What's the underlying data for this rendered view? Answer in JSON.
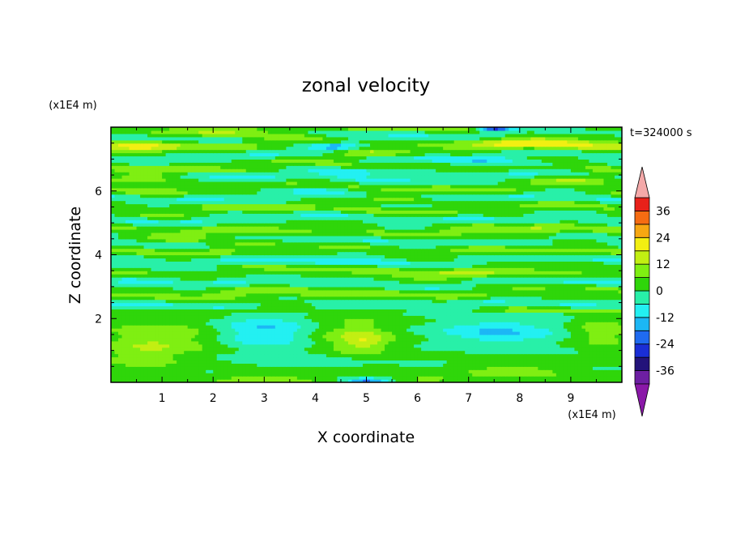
{
  "chart_data": {
    "type": "heatmap",
    "title": "zonal velocity",
    "xlabel": "X coordinate",
    "ylabel": "Z coordinate",
    "x_unit": "(x1E4 m)",
    "y_unit": "(x1E4 m)",
    "time_label": "t=324000 s",
    "xlim": [
      0,
      10
    ],
    "ylim": [
      0,
      8
    ],
    "x_ticks": [
      1,
      2,
      3,
      4,
      5,
      6,
      7,
      8,
      9
    ],
    "y_ticks": [
      2,
      4,
      6
    ],
    "colorbar": {
      "levels": [
        -36,
        -30,
        -24,
        -18,
        -12,
        -6,
        0,
        6,
        12,
        18,
        24,
        30,
        36
      ],
      "labels": [
        -36,
        -24,
        -12,
        0,
        12,
        24,
        36
      ],
      "colors": [
        "#6d1fa3",
        "#23137a",
        "#1a2ed6",
        "#1f6bf0",
        "#1cb7f5",
        "#23f0f2",
        "#28f0a8",
        "#2fd60a",
        "#7fef12",
        "#c2ef12",
        "#f2ef12",
        "#f6a712",
        "#f56c12",
        "#e8211a"
      ],
      "over_color": "#f4a9a9",
      "under_color": "#8a18a8"
    },
    "base_value": 1,
    "features": [
      {
        "x": 1.0,
        "z": 1.4,
        "sx": 1.1,
        "sz": 0.55,
        "v": 10
      },
      {
        "x": 0.6,
        "z": 0.8,
        "sx": 0.7,
        "sz": 0.4,
        "v": 7
      },
      {
        "x": 4.8,
        "z": 1.4,
        "sx": 0.75,
        "sz": 0.55,
        "v": 12
      },
      {
        "x": 5.0,
        "z": 1.3,
        "sx": 0.35,
        "sz": 0.25,
        "v": 6
      },
      {
        "x": 9.6,
        "z": 1.6,
        "sx": 0.55,
        "sz": 0.45,
        "v": 10
      },
      {
        "x": 3.0,
        "z": 1.6,
        "sx": 0.9,
        "sz": 0.5,
        "v": -14
      },
      {
        "x": 7.6,
        "z": 1.6,
        "sx": 1.2,
        "sz": 0.45,
        "v": -13
      },
      {
        "x": 3.8,
        "z": 0.7,
        "sx": 1.3,
        "sz": 0.3,
        "v": -5
      },
      {
        "x": 7.9,
        "z": 0.35,
        "sx": 0.9,
        "sz": 0.22,
        "v": 10
      },
      {
        "x": 3.1,
        "z": 0.1,
        "sx": 1.1,
        "sz": 0.15,
        "v": 9
      },
      {
        "x": 6.2,
        "z": 0.1,
        "sx": 0.6,
        "sz": 0.15,
        "v": 8
      },
      {
        "x": 5.0,
        "z": 0.05,
        "sx": 0.4,
        "sz": 0.1,
        "v": -20
      },
      {
        "x": 8.5,
        "z": 7.5,
        "sx": 1.6,
        "sz": 0.22,
        "v": 15
      },
      {
        "x": 0.5,
        "z": 7.4,
        "sx": 0.8,
        "sz": 0.2,
        "v": 14
      },
      {
        "x": 4.9,
        "z": 7.15,
        "sx": 0.8,
        "sz": 0.12,
        "v": 14
      },
      {
        "x": 4.4,
        "z": 7.4,
        "sx": 0.5,
        "sz": 0.12,
        "v": -20
      },
      {
        "x": 2.5,
        "z": 7.85,
        "sx": 1.6,
        "sz": 0.15,
        "v": 14
      },
      {
        "x": 7.5,
        "z": 7.95,
        "sx": 0.3,
        "sz": 0.08,
        "v": -25
      },
      {
        "x": 0.6,
        "z": 6.4,
        "sx": 0.8,
        "sz": 0.18,
        "v": 13
      },
      {
        "x": 9.3,
        "z": 6.4,
        "sx": 0.7,
        "sz": 0.15,
        "v": 12
      },
      {
        "x": 5.5,
        "z": 5.7,
        "sx": 0.7,
        "sz": 0.12,
        "v": 12
      },
      {
        "x": 5.0,
        "z": 6.6,
        "sx": 1.0,
        "sz": 0.15,
        "v": -11
      },
      {
        "x": 7.5,
        "z": 6.9,
        "sx": 1.2,
        "sz": 0.18,
        "v": -9
      },
      {
        "x": 3.8,
        "z": 6.1,
        "sx": 1.1,
        "sz": 0.15,
        "v": -6
      },
      {
        "x": 2.0,
        "z": 4.5,
        "sx": 1.6,
        "sz": 0.2,
        "v": 7
      },
      {
        "x": 6.8,
        "z": 3.4,
        "sx": 1.7,
        "sz": 0.2,
        "v": 7
      },
      {
        "x": 3.2,
        "z": 2.7,
        "sx": 1.6,
        "sz": 0.2,
        "v": 6
      },
      {
        "x": 8.0,
        "z": 4.7,
        "sx": 1.5,
        "sz": 0.2,
        "v": 6
      },
      {
        "x": 5.0,
        "z": 3.9,
        "sx": 1.5,
        "sz": 0.18,
        "v": -4
      },
      {
        "x": 1.3,
        "z": 3.3,
        "sx": 1.2,
        "sz": 0.18,
        "v": -4
      }
    ]
  }
}
